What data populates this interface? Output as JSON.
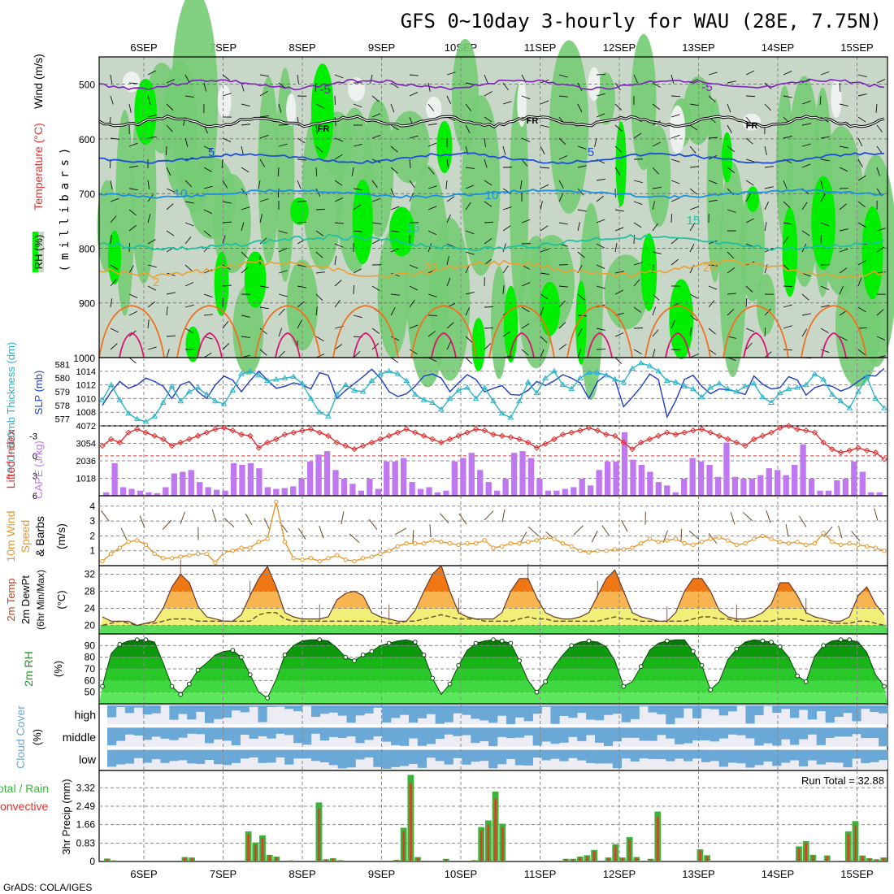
{
  "title": "GFS 0~10day 3-hourly for WAU (28E, 7.75N)",
  "footer": "GrADS: COLA/IGES",
  "run_total_label": "Run Total = 32.88",
  "date_labels": [
    "6SEP",
    "7SEP",
    "8SEP",
    "9SEP",
    "10SEP",
    "11SEP",
    "12SEP",
    "13SEP",
    "14SEP",
    "15SEP"
  ],
  "colors": {
    "rh_light": "#c9d7c9",
    "rh_mid": "#74cc74",
    "rh_bright": "#00ee00",
    "slp_line": "#1e3cc8",
    "thickness_line": "#28b4c8",
    "lifted_index": "#e03030",
    "cape_bar": "#c078f0",
    "wind_speed": "#e8962e",
    "temp_orange": "#f07814",
    "temp_yellow": "#f0f078",
    "rh_green": "#14a014",
    "cloud_blue": "#6aa8d8",
    "precip_green": "#3cb43c",
    "precip_red": "#e03c28"
  },
  "chart_data": [
    {
      "type": "heatmap",
      "name": "Upper-air RH / Temperature / Wind",
      "ylabel": "(millibars)",
      "legend_labels": [
        "RH (%)",
        "Temperature (°C)",
        "Wind (m/s)"
      ],
      "yticks": [
        500,
        600,
        700,
        800,
        900,
        1000
      ],
      "ylim": [
        450,
        1000
      ],
      "contour_labels": [
        "-5",
        "FR",
        "5",
        "10",
        "15",
        "20",
        "2"
      ]
    },
    {
      "type": "line",
      "name": "SLP and 1000-500mb thickness",
      "ylabel_left": "1000~500mb Thickness (dm)",
      "ylabel_right": "SLP (mb)",
      "left_ticks": [
        "581",
        "580",
        "579",
        "578",
        "577"
      ],
      "right_ticks": [
        "1014",
        "1012",
        "1010",
        "1008"
      ],
      "slp_ylim": [
        1006,
        1016
      ],
      "thick_ylim": [
        576.5,
        581.5
      ],
      "slp": [
        1009,
        1011,
        1012.5,
        1011.5,
        1012,
        1013,
        1012.5,
        1011.8,
        1010,
        1012,
        1012.5,
        1011,
        1010,
        1012,
        1013.3,
        1012.7,
        1011,
        1012.6,
        1014,
        1012.7,
        1011.5,
        1011.8,
        1012.3,
        1012,
        1011.4,
        1013.8,
        1013.4,
        1010,
        1011.2,
        1012.2,
        1013.2,
        1014.3,
        1013,
        1011,
        1010.3,
        1010.7,
        1011.8,
        1013.3,
        1013.6,
        1013,
        1011,
        1012.3,
        1013.5,
        1012.8,
        1011,
        1011.5,
        1011.9,
        1010.6,
        1010.5,
        1011.2,
        1012.5,
        1011.9,
        1012.6,
        1013.5,
        1013,
        1012.3,
        1010,
        1012.5,
        1013.5,
        1012.8,
        1008.8,
        1010.2,
        1011.7,
        1013.6,
        1012.8,
        1007.3,
        1009.7,
        1012.8,
        1013.4,
        1011.8,
        1010.7,
        1011.4,
        1011.3,
        1011,
        1010.6,
        1013.3,
        1012.1,
        1011.4,
        1011.6,
        1013.2,
        1012.7,
        1010.5,
        1011.6,
        1012,
        1011.8,
        1011.1,
        1011.6,
        1012.5,
        1013.4,
        1013.3,
        1014.4
      ],
      "thickness": [
        578.4,
        579.5,
        578.4,
        577.4,
        577,
        576.8,
        577.2,
        578.2,
        579.4,
        578.3,
        579,
        579.3,
        578.8,
        578.3,
        578.1,
        579.1,
        580.3,
        580.5,
        580.2,
        579.8,
        579.9,
        580,
        580.1,
        579.6,
        578.5,
        577.5,
        577.2,
        578.8,
        579.5,
        579.1,
        579,
        579.8,
        580.3,
        580.5,
        580.3,
        579.8,
        578.8,
        578.4,
        578.2,
        577.7,
        578.5,
        579.1,
        579.3,
        578.5,
        579.3,
        578.3,
        577.4,
        577.1,
        578.3,
        579.7,
        578.9,
        580,
        580.5,
        579.5,
        579.2,
        580,
        580.4,
        580.4,
        580.2,
        579.9,
        579.7,
        580.7,
        581.1,
        580.9,
        580.5,
        579.8,
        579.7,
        579.4,
        579.2,
        578.6,
        579.3,
        579.6,
        579.2,
        579,
        579.4,
        579.6,
        578.6,
        578.2,
        578.9,
        579.2,
        579.3,
        579.5,
        580.3,
        579.9,
        578.8,
        578.3,
        577.8,
        579,
        580.1,
        578.5,
        577.8
      ]
    },
    {
      "type": "bar",
      "name": "Lifted Index and CAPE",
      "ylabel_left": "Lifted Index",
      "ylabel_right": "CAPE (J/kg)",
      "li_ticks": [
        "-3",
        "0",
        "3",
        "6"
      ],
      "cape_ticks": [
        "4072",
        "3054",
        "2036",
        "1018"
      ],
      "li_ylim": [
        -4.5,
        6
      ],
      "cape_ylim": [
        0,
        4072
      ],
      "lifted_index": [
        -1.5,
        -2.5,
        -2,
        -3.5,
        -4,
        -3.5,
        -3,
        -2.5,
        -1.5,
        -2,
        -2.5,
        -3,
        -3.5,
        -4,
        -4.2,
        -3.8,
        -3.2,
        -3,
        -1.2,
        -2,
        -2.5,
        -3.2,
        -3.5,
        -3.8,
        -4,
        -3.5,
        -3,
        -2,
        -1.5,
        -1,
        -1.5,
        -2,
        -2.5,
        -3,
        -3.5,
        -4,
        -3.5,
        -3,
        -2.5,
        -2,
        -2.5,
        -3,
        -3.5,
        -4,
        -3.8,
        -3.2,
        -3,
        -2.8,
        -2.5,
        -2,
        -1.2,
        -1.8,
        -2.5,
        -3.2,
        -3.5,
        -3.8,
        -4.2,
        -3.8,
        -3.2,
        -3,
        -2,
        -1,
        -2,
        -2.5,
        -3,
        -3.5,
        -3.2,
        -3.5,
        -3.8,
        -4,
        -3.5,
        -3,
        -2.5,
        -2,
        -1.5,
        -2.5,
        -3,
        -3.5,
        -4.2,
        -4.5,
        -4,
        -3.8,
        -3.5,
        -2,
        -1,
        -0.5,
        -0.8,
        -1.2,
        -0.8,
        -0.5,
        0.5
      ],
      "cape": [
        300,
        1900,
        500,
        400,
        300,
        200,
        150,
        500,
        1000,
        1300,
        1400,
        1500,
        800,
        500,
        350,
        300,
        400,
        1900,
        1800,
        1900,
        1600,
        500,
        400,
        450,
        550,
        1000,
        2000,
        2400,
        2600,
        1500,
        1000,
        700,
        300,
        1000,
        400,
        1000,
        2000,
        2000,
        2200,
        800,
        400,
        500,
        200,
        300,
        2000,
        2200,
        2500,
        1500,
        800,
        300,
        1000,
        2500,
        2600,
        2200,
        2000,
        1000,
        300,
        300,
        400,
        500,
        1000,
        600,
        1500,
        2000,
        2000,
        2800,
        2100,
        1800,
        1400,
        800,
        600,
        200,
        1000,
        2200,
        2000,
        1800,
        1100,
        3000,
        1100,
        1000,
        1000,
        1200,
        1600,
        1500,
        1200,
        1800,
        2000,
        1000,
        300,
        300,
        900
      ],
      "cape_blocks": [
        200,
        1900,
        500,
        400,
        300,
        200,
        150,
        500,
        1300,
        1400,
        1500,
        800,
        500,
        350,
        300,
        1900,
        1800,
        1900,
        1600,
        500,
        400,
        450,
        550,
        1000,
        2000,
        2400,
        2600,
        1500,
        1000,
        700,
        300,
        1000,
        400,
        2000,
        2000,
        2200,
        800,
        400,
        500,
        200,
        300,
        2000,
        2200,
        2500,
        1500,
        800,
        300,
        1000,
        2500,
        2600,
        2200,
        1000,
        300,
        300,
        400,
        500,
        1000,
        600,
        1500,
        2000,
        2000,
        3700,
        2100,
        1800,
        1400,
        800,
        600,
        200,
        1000,
        2200,
        2000,
        1800,
        1100,
        3100,
        1100,
        1000,
        1000,
        1200,
        1600,
        1500,
        1200,
        1800,
        3000,
        1000,
        300,
        300,
        900,
        1000,
        2000,
        1400,
        200,
        200
      ]
    },
    {
      "type": "line",
      "name": "10m Wind Speed & Barbs",
      "ylabel": "10m Wind Speed & Barbs (m/s)",
      "yticks": [
        "1",
        "2",
        "3",
        "4"
      ],
      "ylim": [
        0,
        4.7
      ],
      "speed": [
        0.3,
        0.8,
        1.2,
        1.6,
        1.7,
        1.4,
        0.8,
        0.5,
        0.5,
        0.6,
        0.7,
        0.8,
        0.8,
        0.2,
        0.9,
        1,
        1.2,
        1.2,
        1.6,
        1.8,
        4.3,
        1.6,
        0.5,
        0.4,
        0.5,
        0.3,
        0.5,
        0.7,
        0.4,
        0.3,
        0.5,
        0.6,
        0.8,
        1,
        1.3,
        1.5,
        1.5,
        1.5,
        1.7,
        1.6,
        1.5,
        1.4,
        1.5,
        1.5,
        1.7,
        1.2,
        1.3,
        1.5,
        1.5,
        1.6,
        1.7,
        1.9,
        1.8,
        1.5,
        1.3,
        1,
        0.9,
        1,
        1,
        1.1,
        1.1,
        1.2,
        1.5,
        1.8,
        1.6,
        1.7,
        1.8,
        1.5,
        1.4,
        1.6,
        1.8,
        1.9,
        1.7,
        1.4,
        1.5,
        1.8,
        2,
        1.8,
        1.6,
        1.5,
        1.6,
        1.4,
        1.5,
        2.2,
        1.6,
        1.4,
        1.5,
        1.4,
        1.3,
        1.2,
        1
      ]
    },
    {
      "type": "area",
      "name": "2m Temp / 2m DewPt",
      "ylabel": "2m Temp 2m DewPt (6hr Min/Max) (°C)",
      "yticks": [
        "20",
        "24",
        "28",
        "32"
      ],
      "ylim": [
        18,
        34
      ],
      "temp": [
        22,
        21,
        21,
        21,
        20,
        20.5,
        21,
        24,
        29,
        32,
        30,
        24.5,
        22,
        21.5,
        21,
        21,
        22.5,
        27,
        31,
        33.8,
        29,
        23,
        22,
        21.5,
        21.5,
        21.5,
        22,
        26,
        27.5,
        28,
        27,
        23,
        22,
        21.5,
        21,
        21,
        23.5,
        28,
        32,
        34,
        28,
        23,
        22,
        21.5,
        21.5,
        21.5,
        23,
        28,
        31,
        31,
        26.5,
        23,
        22,
        21.5,
        21.5,
        22,
        23,
        27,
        31,
        33,
        28,
        23,
        22,
        21.5,
        21,
        21,
        23,
        28,
        31,
        31,
        28,
        23.5,
        22,
        21.5,
        21.5,
        22,
        23,
        25,
        30,
        30,
        27,
        23,
        22,
        21.5,
        21,
        21,
        22,
        27,
        29,
        25,
        22.5
      ],
      "dewpoint": [
        20,
        20.5,
        21,
        20.5,
        20,
        20.5,
        20.5,
        21,
        21.5,
        21.5,
        21.5,
        21,
        21,
        21,
        21,
        21,
        21,
        21,
        22.5,
        23,
        23,
        21.5,
        21,
        21,
        21,
        21,
        21,
        21,
        21,
        21,
        21,
        21,
        21,
        20.5,
        20.5,
        21,
        21,
        21.5,
        22,
        22.5,
        22,
        21.5,
        21.5,
        21.5,
        21,
        21,
        21,
        21,
        21.5,
        22,
        21.5,
        21.5,
        21,
        21,
        21,
        21,
        21,
        21,
        21.5,
        22,
        21.5,
        21.5,
        21,
        21,
        21,
        21,
        21,
        21,
        21.5,
        22,
        22,
        21.5,
        21.5,
        21,
        21,
        21,
        21,
        21,
        21.5,
        21.5,
        21.5,
        21,
        21,
        21,
        20.5,
        20.5,
        20.5,
        21,
        21,
        20.5,
        20
      ]
    },
    {
      "type": "area",
      "name": "2m RH",
      "ylabel": "2m RH (%)",
      "yticks": [
        "50",
        "60",
        "70",
        "80",
        "90"
      ],
      "ylim": [
        40,
        100
      ],
      "rh": [
        55,
        83,
        91,
        94,
        95,
        95,
        93,
        75,
        55,
        48,
        57,
        69,
        75,
        82,
        85,
        86,
        80,
        65,
        50,
        45,
        61,
        82,
        90,
        94,
        95,
        95,
        94,
        88,
        80,
        77,
        82,
        85,
        90,
        92,
        94,
        95,
        93,
        82,
        62,
        48,
        57,
        73,
        86,
        92,
        94,
        95,
        94,
        92,
        77,
        60,
        50,
        59,
        72,
        82,
        90,
        93,
        94,
        93,
        89,
        77,
        55,
        59,
        72,
        86,
        92,
        94,
        95,
        95,
        85,
        73,
        52,
        59,
        78,
        87,
        93,
        95,
        94,
        93,
        89,
        80,
        64,
        59,
        81,
        90,
        94,
        95,
        95,
        93,
        84,
        65,
        55
      ],
      "rh_knots": [
        0,
        2,
        4,
        5,
        8,
        9,
        10,
        11,
        15,
        16,
        17,
        19,
        21,
        25,
        28,
        29,
        30,
        31,
        33,
        36,
        37,
        38,
        40,
        41,
        43,
        45,
        46,
        47,
        48,
        50,
        51,
        54,
        56,
        60,
        62,
        65,
        68,
        69,
        70,
        73,
        76,
        77,
        78,
        80,
        81,
        83,
        85,
        86,
        90
      ]
    },
    {
      "type": "table",
      "name": "Cloud Cover",
      "ylabel": "Cloud Cover (%)",
      "row_labels": [
        "high",
        "middle",
        "low"
      ]
    },
    {
      "type": "bar",
      "name": "3hr Precip",
      "ylabel": "3hr Precip (mm)",
      "legend_labels": [
        "Total / Rain",
        "Convective"
      ],
      "yticks": [
        "0.83",
        "1.66",
        "2.49",
        "3.32"
      ],
      "ylim": [
        0,
        4.1
      ],
      "precip": [
        0.13,
        0.05,
        0,
        0,
        0,
        0,
        0,
        0,
        0,
        0,
        0,
        0.2,
        0.18,
        0,
        0,
        0,
        0,
        0,
        0,
        0,
        1.36,
        0.86,
        1.18,
        0.3,
        0.22,
        0,
        0.05,
        0,
        0,
        0,
        2.66,
        0.1,
        0.15,
        0.06,
        0,
        0,
        0,
        0,
        0,
        0,
        0,
        0.08,
        1.52,
        3.9,
        0.2,
        0,
        0,
        0,
        0.12,
        0,
        0,
        0,
        0.06,
        1.55,
        1.85,
        3.15,
        1.7,
        0,
        0,
        0,
        0,
        0,
        0,
        0,
        0,
        0.12,
        0.12,
        0.22,
        0.28,
        0.52,
        0,
        0.18,
        0.78,
        0.18,
        1.1,
        0.2,
        0,
        0.12,
        2.25,
        0,
        0,
        0,
        0,
        0,
        0.55,
        0.28,
        0,
        0,
        0,
        0,
        0,
        0,
        0,
        0,
        0,
        0,
        0,
        0,
        0.68,
        0.92,
        0.3,
        0,
        0.27,
        0.03,
        0,
        1.36,
        1.82,
        0.27,
        0.15,
        0.1,
        0.18
      ]
    }
  ]
}
